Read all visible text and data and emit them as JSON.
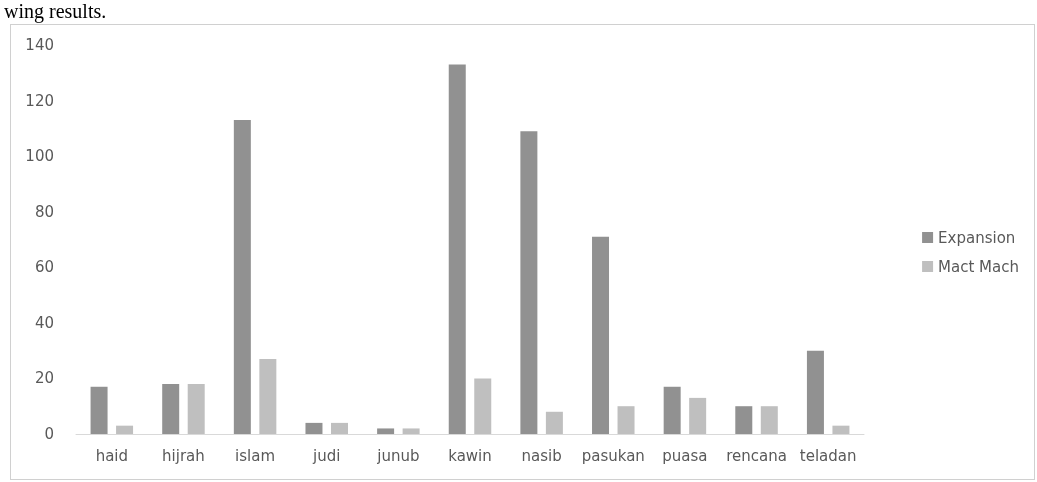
{
  "chart_data": {
    "type": "bar",
    "annotations": [
      "wing results."
    ],
    "categories": [
      "haid",
      "hijrah",
      "islam",
      "judi",
      "junub",
      "kawin",
      "nasib",
      "pasukan",
      "puasa",
      "rencana",
      "teladan"
    ],
    "series": [
      {
        "name": "Expansion",
        "color": "#919191",
        "values": [
          17,
          18,
          113,
          4,
          2,
          133,
          109,
          71,
          17,
          10,
          30
        ]
      },
      {
        "name": "Mact Mach",
        "color": "#bfbfbf",
        "values": [
          3,
          18,
          27,
          4,
          2,
          20,
          8,
          10,
          13,
          10,
          3
        ]
      }
    ],
    "ylim": [
      0,
      140
    ],
    "yticks": [
      0,
      20,
      40,
      60,
      80,
      100,
      120,
      140
    ],
    "grid": false,
    "legend": "right"
  }
}
